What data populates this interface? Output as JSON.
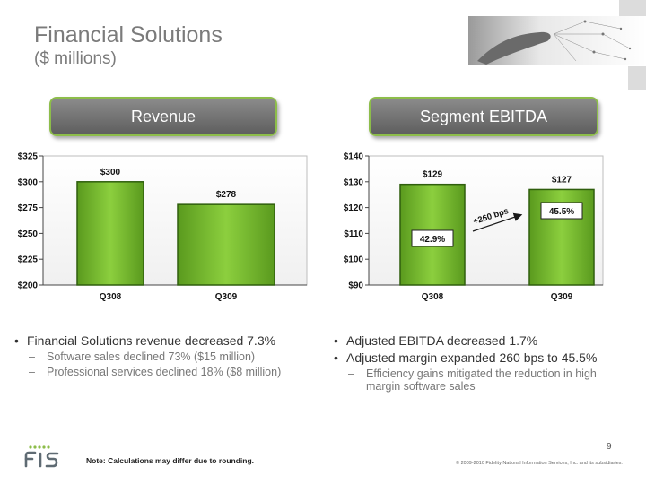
{
  "header": {
    "title": "Financial Solutions",
    "subtitle": "($ millions)"
  },
  "panels": {
    "revenue_label": "Revenue",
    "ebitda_label": "Segment EBITDA"
  },
  "chart_data": [
    {
      "type": "bar",
      "categories": [
        "Q308",
        "Q309"
      ],
      "values": [
        300,
        278
      ],
      "value_labels": [
        "$300",
        "$278"
      ],
      "ylim": [
        200,
        325
      ],
      "yticks": [
        200,
        225,
        250,
        275,
        300,
        325
      ],
      "ytick_labels": [
        "$200",
        "$225",
        "$250",
        "$275",
        "$300",
        "$325"
      ],
      "grid": false,
      "bar_color": "#6fae2c"
    },
    {
      "type": "bar",
      "categories": [
        "Q308",
        "Q309"
      ],
      "values": [
        129,
        127
      ],
      "value_labels": [
        "$129",
        "$127"
      ],
      "margin_labels": [
        "42.9%",
        "45.5%"
      ],
      "annotation": "+260 bps",
      "ylim": [
        90,
        140
      ],
      "yticks": [
        90,
        100,
        110,
        120,
        130,
        140
      ],
      "ytick_labels": [
        "$90",
        "$100",
        "$110",
        "$120",
        "$130",
        "$140"
      ],
      "grid": false,
      "bar_color": "#6fae2c"
    }
  ],
  "left_text": {
    "bullet": "Financial Solutions revenue decreased 7.3%",
    "subs": [
      "Software sales declined 73% ($15 million)",
      "Professional services declined  18% ($8 million)"
    ]
  },
  "right_text": {
    "bullets": [
      "Adjusted EBITDA decreased 1.7%",
      "Adjusted margin expanded 260 bps to 45.5%"
    ],
    "subs": [
      "Efficiency gains mitigated the reduction in high margin software sales"
    ]
  },
  "footer": {
    "page_number": "9",
    "note": "Note: Calculations may differ due to rounding.",
    "copyright": "© 2009-2010 Fidelity National Information Services, Inc. and its subsidiaries.",
    "logo_text": "FIS"
  }
}
